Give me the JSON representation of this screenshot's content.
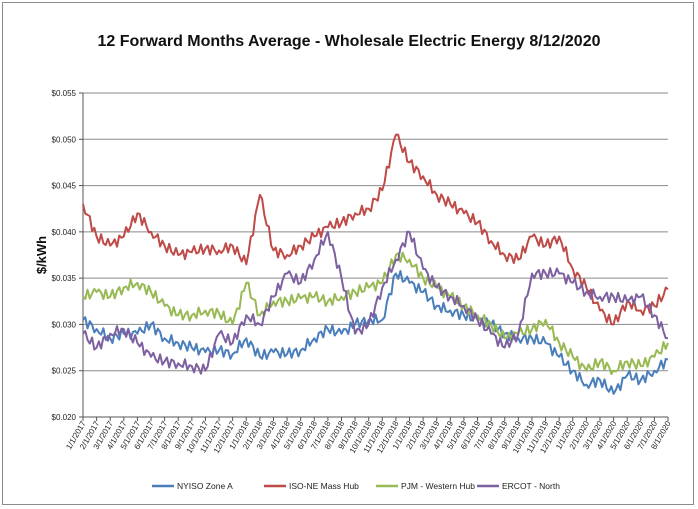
{
  "chart_data": {
    "type": "line",
    "title": "12 Forward Months Average - Wholesale Electric Energy 8/12/2020",
    "ylabel": "$/kWh",
    "xlabel": "",
    "ylim": [
      0.02,
      0.055
    ],
    "yticks": [
      "$0.020",
      "$0.025",
      "$0.030",
      "$0.035",
      "$0.040",
      "$0.045",
      "$0.050",
      "$0.055"
    ],
    "grid": "horizontal",
    "legend_position": "bottom",
    "x": [
      "1/1/2017",
      "2/1/2017",
      "3/1/2017",
      "4/1/2017",
      "5/1/2017",
      "6/1/2017",
      "7/1/2017",
      "8/1/2017",
      "9/1/2017",
      "10/1/2017",
      "11/1/2017",
      "12/1/2017",
      "1/1/2018",
      "2/1/2018",
      "3/1/2018",
      "4/1/2018",
      "5/1/2018",
      "6/1/2018",
      "7/1/2018",
      "8/1/2018",
      "9/1/2018",
      "10/1/2018",
      "11/1/2018",
      "12/1/2018",
      "1/1/2019",
      "2/1/2019",
      "3/1/2019",
      "4/1/2019",
      "5/1/2019",
      "6/1/2019",
      "7/1/2019",
      "8/1/2019",
      "9/1/2019",
      "10/1/2019",
      "11/1/2019",
      "12/1/2019",
      "1/1/2020",
      "2/1/2020",
      "3/1/2020",
      "4/1/2020",
      "5/1/2020",
      "6/1/2020",
      "7/1/2020",
      "8/1/2020"
    ],
    "series": [
      {
        "name": "NYISO Zone A",
        "color": "#4a7ebb",
        "values": [
          0.0305,
          0.0295,
          0.0285,
          0.029,
          0.029,
          0.03,
          0.0285,
          0.028,
          0.0275,
          0.027,
          0.0272,
          0.0268,
          0.0285,
          0.0265,
          0.027,
          0.0268,
          0.0272,
          0.0285,
          0.0295,
          0.029,
          0.03,
          0.0305,
          0.0305,
          0.0355,
          0.0345,
          0.0335,
          0.032,
          0.0315,
          0.031,
          0.0305,
          0.03,
          0.029,
          0.0285,
          0.0285,
          0.028,
          0.0265,
          0.025,
          0.0235,
          0.024,
          0.0225,
          0.0245,
          0.024,
          0.025,
          0.0262
        ]
      },
      {
        "name": "ISO-NE Mass Hub",
        "color": "#be4b48",
        "values": [
          0.043,
          0.0395,
          0.0385,
          0.0395,
          0.042,
          0.04,
          0.0385,
          0.0375,
          0.0378,
          0.0382,
          0.038,
          0.0385,
          0.0365,
          0.044,
          0.038,
          0.0375,
          0.0385,
          0.0395,
          0.0405,
          0.041,
          0.042,
          0.0425,
          0.0445,
          0.0505,
          0.0475,
          0.046,
          0.044,
          0.043,
          0.042,
          0.041,
          0.039,
          0.0375,
          0.037,
          0.0395,
          0.0385,
          0.0395,
          0.036,
          0.034,
          0.0315,
          0.03,
          0.0325,
          0.0315,
          0.032,
          0.0338
        ]
      },
      {
        "name": "PJM - Western Hub",
        "color": "#98b954",
        "values": [
          0.033,
          0.0335,
          0.033,
          0.034,
          0.0345,
          0.0335,
          0.032,
          0.031,
          0.031,
          0.0315,
          0.0312,
          0.03,
          0.0345,
          0.031,
          0.0325,
          0.0325,
          0.0328,
          0.033,
          0.0325,
          0.033,
          0.0335,
          0.034,
          0.0345,
          0.0375,
          0.037,
          0.035,
          0.034,
          0.033,
          0.032,
          0.031,
          0.03,
          0.0285,
          0.029,
          0.0295,
          0.0305,
          0.028,
          0.0265,
          0.025,
          0.026,
          0.025,
          0.026,
          0.0255,
          0.0265,
          0.028
        ]
      },
      {
        "name": "ERCOT - North",
        "color": "#7d60a0",
        "values": [
          0.029,
          0.0275,
          0.029,
          0.0295,
          0.028,
          0.0265,
          0.026,
          0.0258,
          0.0255,
          0.025,
          0.029,
          0.028,
          0.031,
          0.03,
          0.033,
          0.0355,
          0.0345,
          0.037,
          0.04,
          0.035,
          0.029,
          0.03,
          0.034,
          0.037,
          0.04,
          0.036,
          0.034,
          0.033,
          0.032,
          0.0305,
          0.029,
          0.0275,
          0.029,
          0.0355,
          0.0355,
          0.0355,
          0.0345,
          0.0335,
          0.033,
          0.033,
          0.0325,
          0.033,
          0.031,
          0.0285
        ]
      }
    ]
  }
}
